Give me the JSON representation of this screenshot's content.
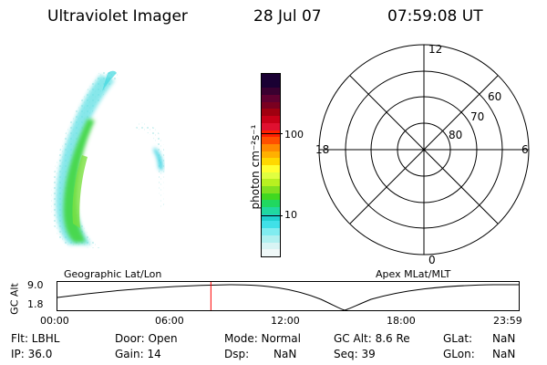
{
  "header": {
    "instrument": "Ultraviolet Imager",
    "date": "28 Jul 07",
    "time": "07:59:08 UT"
  },
  "colorbar": {
    "label": "photon cm⁻²s⁻¹",
    "ticks": [
      "100",
      "10"
    ],
    "colors_top_to_bottom": [
      "#1a0033",
      "#1a0033",
      "#3a0030",
      "#600030",
      "#7a0020",
      "#a00010",
      "#c80018",
      "#e01030",
      "#ff2000",
      "#ff5000",
      "#ff8a00",
      "#ffb000",
      "#ffd800",
      "#ffff30",
      "#e0ff40",
      "#b8f020",
      "#80e020",
      "#40d820",
      "#20d860",
      "#20d8a0",
      "#20d0d0",
      "#40e0e8",
      "#80ecf0",
      "#b0f0f0",
      "#d8f4f4",
      "#f0f8f8"
    ]
  },
  "polar": {
    "labels": {
      "top": "12",
      "bottom": "0",
      "left": "18",
      "right": "6"
    },
    "lat_labels": [
      "60",
      "70",
      "80"
    ]
  },
  "timeline": {
    "left_label": "Geographic Lat/Lon",
    "right_label": "Apex  MLat/MLT",
    "axis_title": "GC Alt",
    "y_ticks": [
      "9.0",
      "1.8"
    ],
    "x_ticks": [
      "00:00",
      "06:00",
      "12:00",
      "18:00",
      "23:59"
    ],
    "current_time_fraction": 0.3327,
    "marker_color": "#ff0000"
  },
  "info": {
    "row1": {
      "flt": "Flt: LBHL",
      "door": "Door: Open",
      "mode": "Mode: Normal",
      "gcalt": "GC Alt: 8.6 Re",
      "glat_label": "GLat:",
      "glat_value": "NaN"
    },
    "row2": {
      "ip": "IP: 36.0",
      "gain": "Gain: 14",
      "dsp_label": "Dsp:",
      "dsp_value": "NaN",
      "seq": "Seq: 39",
      "glon_label": "GLon:",
      "glon_value": "NaN"
    }
  }
}
